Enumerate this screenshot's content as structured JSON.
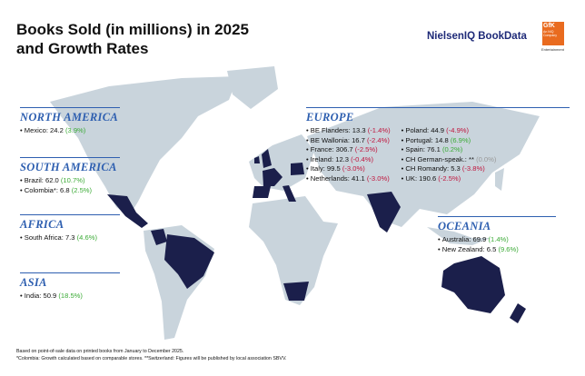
{
  "header": {
    "title_lines": [
      "Books Sold (in millions) in 2025",
      "and Growth Rates"
    ],
    "logo_text": "NielsenIQ BookData",
    "badge": {
      "brand": "GfK",
      "sub": "An NIQ Company",
      "tag": "Entertainment"
    }
  },
  "regions": [
    {
      "heading": "NORTH AMERICA",
      "columns": [
        [
          {
            "label": "Mexico: 24.2",
            "growth": "(3.9%)",
            "growth_color": "#3aaa35"
          }
        ]
      ]
    },
    {
      "heading": "SOUTH AMERICA",
      "columns": [
        [
          {
            "label": "Brazil: 62.0",
            "growth": "(10.7%)",
            "growth_color": "#3aaa35"
          },
          {
            "label": "Colombia*: 6.8",
            "growth": "(2.5%)",
            "growth_color": "#3aaa35"
          }
        ]
      ]
    },
    {
      "heading": "AFRICA",
      "columns": [
        [
          {
            "label": "South Africa: 7.3",
            "growth": "(4.6%)",
            "growth_color": "#3aaa35"
          }
        ]
      ]
    },
    {
      "heading": "ASIA",
      "columns": [
        [
          {
            "label": "India: 50.9",
            "growth": "(18.5%)",
            "growth_color": "#3aaa35"
          }
        ]
      ]
    },
    {
      "heading": "EUROPE",
      "columns": [
        [
          {
            "label": "BE Flanders: 13.3",
            "growth": "(-1.4%)",
            "growth_color": "#c0143c"
          },
          {
            "label": "BE Wallonia: 16.7",
            "growth": "(-2.4%)",
            "growth_color": "#c0143c"
          },
          {
            "label": "France: 306.7",
            "growth": "(-2.5%)",
            "growth_color": "#c0143c"
          },
          {
            "label": "Ireland: 12.3",
            "growth": "(-0.4%)",
            "growth_color": "#c0143c"
          },
          {
            "label": "Italy: 99.5",
            "growth": "(-3.0%)",
            "growth_color": "#c0143c"
          },
          {
            "label": "Netherlands: 41.1",
            "growth": "(-3.0%)",
            "growth_color": "#c0143c"
          }
        ],
        [
          {
            "label": "Poland: 44.9",
            "growth": "(-4.9%)",
            "growth_color": "#c0143c"
          },
          {
            "label": "Portugal: 14.8",
            "growth": "(6.9%)",
            "growth_color": "#3aaa35"
          },
          {
            "label": "Spain: 76.1",
            "growth": "(0.2%)",
            "growth_color": "#3aaa35"
          },
          {
            "label": "CH German-speak.: **",
            "growth": "(0.0%)",
            "growth_color": "#999999"
          },
          {
            "label": "CH Romandy: 5.3",
            "growth": "(-3.8%)",
            "growth_color": "#c0143c"
          },
          {
            "label": "UK: 190.6",
            "growth": "(-2.5%)",
            "growth_color": "#c0143c"
          }
        ]
      ]
    },
    {
      "heading": "OCEANIA",
      "columns": [
        [
          {
            "label": "Australia: 69.9",
            "growth": "(1.4%)",
            "growth_color": "#3aaa35"
          },
          {
            "label": "New Zealand: 6.5",
            "growth": "(9.6%)",
            "growth_color": "#3aaa35"
          }
        ]
      ]
    }
  ],
  "footnotes": [
    "Based on point-of-sale data on printed books from January to December 2025.",
    "*Colombia: Growth calculated based on comparable stores. **Switzerland: Figures will be published by local association SBVV."
  ]
}
